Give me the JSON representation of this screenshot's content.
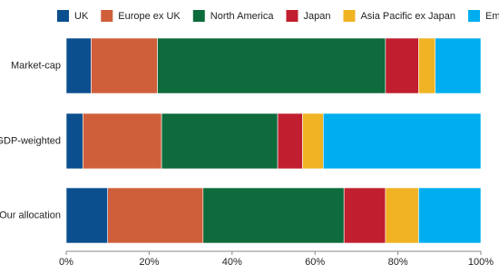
{
  "chart_data": {
    "type": "stacked-barh",
    "categories": [
      "Market-cap",
      "GDP-weighted",
      "Our allocation"
    ],
    "series": [
      {
        "name": "UK",
        "color": "#0b4f8f",
        "values": [
          6,
          4,
          10
        ]
      },
      {
        "name": "Europe ex UK",
        "color": "#cf5f3b",
        "values": [
          16,
          19,
          23
        ]
      },
      {
        "name": "North America",
        "color": "#0e6b3b",
        "values": [
          55,
          28,
          34
        ]
      },
      {
        "name": "Japan",
        "color": "#c11f2f",
        "values": [
          8,
          6,
          10
        ]
      },
      {
        "name": "Asia Pacific ex Japan",
        "color": "#f0b323",
        "values": [
          4,
          5,
          8
        ]
      },
      {
        "name": "Emerging markets",
        "color": "#00aeef",
        "values": [
          11,
          38,
          15
        ]
      }
    ],
    "xlim": [
      0,
      100
    ],
    "xticks": [
      {
        "value": 0,
        "label": "0%"
      },
      {
        "value": 20,
        "label": "20%"
      },
      {
        "value": 40,
        "label": "40%"
      },
      {
        "value": 60,
        "label": "60%"
      },
      {
        "value": 80,
        "label": "80%"
      },
      {
        "value": 100,
        "label": "100%"
      }
    ],
    "legend": "top"
  }
}
